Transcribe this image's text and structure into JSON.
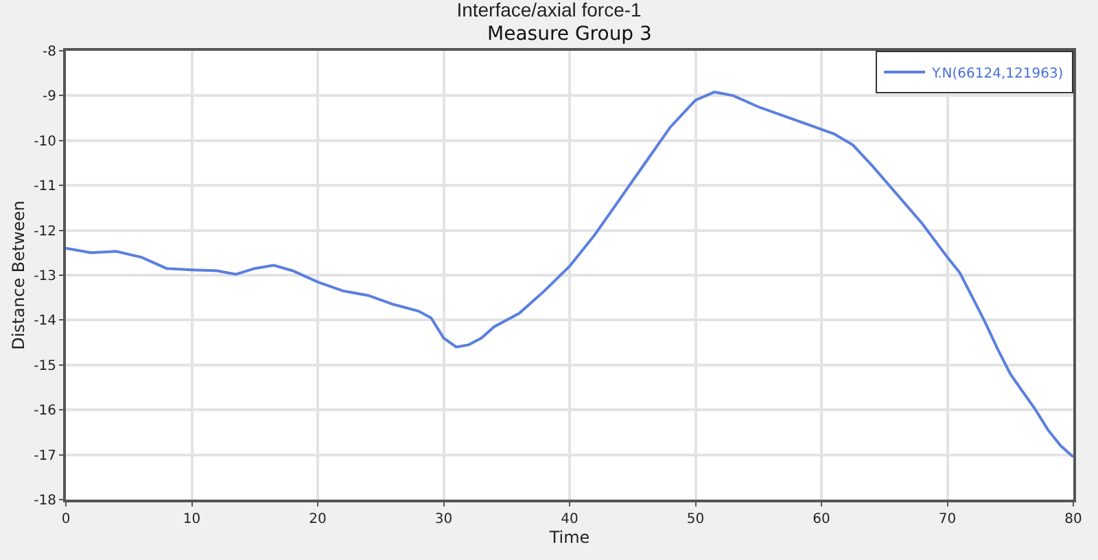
{
  "chart_data": {
    "type": "line",
    "title": "Interface/axial force-1",
    "subtitle": "Measure Group 3",
    "xlabel": "Time",
    "ylabel": "Distance Between",
    "x": [
      0,
      2,
      4,
      6,
      8,
      10,
      12,
      13.5,
      15,
      16.5,
      18,
      20,
      22,
      24,
      26,
      28,
      29,
      30,
      31,
      32,
      33,
      34,
      36,
      38,
      40,
      42,
      44,
      46,
      48,
      50,
      51.5,
      53,
      55,
      57,
      59,
      61,
      62.5,
      64,
      66,
      68,
      70,
      71,
      72,
      73,
      74,
      75,
      76,
      77,
      78,
      79,
      80
    ],
    "series": [
      {
        "name": "Y.N(66124,121963)",
        "color": "#5a7fe0",
        "values": [
          -12.4,
          -12.5,
          -12.47,
          -12.6,
          -12.85,
          -12.88,
          -12.9,
          -12.98,
          -12.85,
          -12.78,
          -12.9,
          -13.15,
          -13.35,
          -13.45,
          -13.65,
          -13.8,
          -13.95,
          -14.4,
          -14.6,
          -14.55,
          -14.4,
          -14.15,
          -13.85,
          -13.35,
          -12.8,
          -12.1,
          -11.3,
          -10.5,
          -9.7,
          -9.1,
          -8.92,
          -9.0,
          -9.25,
          -9.45,
          -9.65,
          -9.85,
          -10.1,
          -10.55,
          -11.2,
          -11.85,
          -12.6,
          -12.95,
          -13.5,
          -14.05,
          -14.65,
          -15.2,
          -15.6,
          -16.0,
          -16.45,
          -16.8,
          -17.05
        ]
      }
    ],
    "xlim": [
      0,
      80
    ],
    "xticks": [
      0,
      10,
      20,
      30,
      40,
      50,
      60,
      70,
      80
    ],
    "ylim": [
      -18,
      -8
    ],
    "yticks": [
      -18,
      -17,
      -16,
      -15,
      -14,
      -13,
      -12,
      -11,
      -10,
      -9,
      -8
    ],
    "grid": true,
    "legend": "top right",
    "marker": "none",
    "line_style": "solid"
  }
}
